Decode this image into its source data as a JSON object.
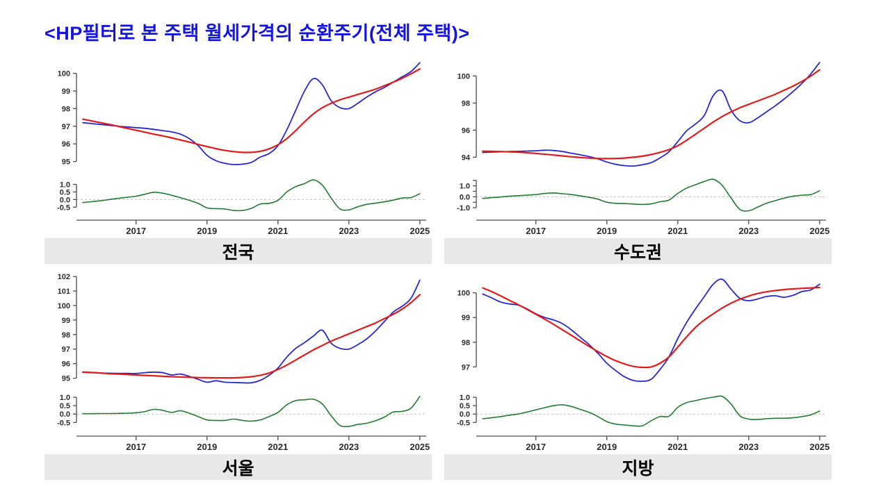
{
  "title": "<HP필터로 본 주택 월세가격의 순환주기(전체 주택)>",
  "colors": {
    "actual": "#2727cf",
    "trend": "#e11a1a",
    "cycle": "#227a30",
    "zero_line": "#bdbdbd",
    "axis": "#4a4a4a",
    "tick_text": "#2b2b2b",
    "title": "#1414e0",
    "label_bg": "#e8e8e8"
  },
  "x_axis": {
    "start": 2015.5,
    "step": 0.25,
    "range": [
      2015.32,
      2025.18
    ],
    "ticks": [
      2017,
      2019,
      2021,
      2023,
      2025
    ],
    "tick_labels": [
      "2017",
      "2019",
      "2021",
      "2023",
      "2025"
    ]
  },
  "chart_data": [
    {
      "type": "line",
      "title": "전국",
      "main": {
        "ylim": [
          94.55,
          100.85
        ],
        "yticks": [
          95,
          96,
          97,
          98,
          99,
          100
        ],
        "ytick_labels": [
          "95",
          "96",
          "97",
          "98",
          "99",
          "100"
        ],
        "series": [
          {
            "name": "actual",
            "values": [
              97.2,
              97.15,
              97.1,
              97.05,
              97.0,
              96.96,
              96.92,
              96.88,
              96.82,
              96.75,
              96.68,
              96.55,
              96.3,
              95.9,
              95.35,
              95.05,
              94.9,
              94.83,
              94.85,
              94.95,
              95.25,
              95.45,
              95.9,
              96.8,
              97.9,
              99.0,
              99.7,
              99.35,
              98.45,
              98.05,
              98.0,
              98.3,
              98.65,
              98.95,
              99.2,
              99.5,
              99.8,
              100.1,
              100.6
            ]
          },
          {
            "name": "hp_trend",
            "values": [
              97.4,
              97.3,
              97.2,
              97.1,
              96.99,
              96.88,
              96.77,
              96.66,
              96.55,
              96.45,
              96.34,
              96.22,
              96.1,
              95.97,
              95.85,
              95.73,
              95.63,
              95.56,
              95.52,
              95.52,
              95.58,
              95.72,
              95.95,
              96.3,
              96.75,
              97.25,
              97.7,
              98.05,
              98.3,
              98.5,
              98.65,
              98.8,
              98.95,
              99.1,
              99.3,
              99.5,
              99.72,
              99.97,
              100.25
            ]
          }
        ]
      },
      "cycle": {
        "ylim": [
          -0.9,
          1.48
        ],
        "yticks": [
          1.0,
          0.5,
          0.0,
          -0.5
        ],
        "ytick_labels": [
          "1.0",
          "0.5",
          "0.0",
          "-0.5"
        ],
        "series": {
          "name": "cycle",
          "values": [
            -0.2,
            -0.14,
            -0.08,
            0.0,
            0.08,
            0.15,
            0.22,
            0.35,
            0.48,
            0.42,
            0.28,
            0.12,
            -0.05,
            -0.25,
            -0.55,
            -0.6,
            -0.62,
            -0.72,
            -0.72,
            -0.58,
            -0.3,
            -0.25,
            -0.05,
            0.5,
            0.85,
            1.05,
            1.3,
            0.95,
            0.1,
            -0.62,
            -0.68,
            -0.48,
            -0.32,
            -0.24,
            -0.15,
            -0.04,
            0.1,
            0.13,
            0.38
          ]
        }
      }
    },
    {
      "type": "line",
      "title": "수도권",
      "main": {
        "ylim": [
          93.1,
          101.3
        ],
        "yticks": [
          94,
          96,
          98,
          100
        ],
        "ytick_labels": [
          "94",
          "96",
          "98",
          "100"
        ],
        "series": [
          {
            "name": "actual",
            "values": [
              94.35,
              94.38,
              94.4,
              94.42,
              94.44,
              94.46,
              94.48,
              94.52,
              94.5,
              94.42,
              94.3,
              94.18,
              94.05,
              93.88,
              93.65,
              93.48,
              93.38,
              93.35,
              93.45,
              93.6,
              93.95,
              94.4,
              95.15,
              95.95,
              96.45,
              97.1,
              98.55,
              98.9,
              97.5,
              96.7,
              96.55,
              96.9,
              97.35,
              97.8,
              98.3,
              98.85,
              99.45,
              100.15,
              101.0
            ]
          },
          {
            "name": "hp_trend",
            "values": [
              94.45,
              94.44,
              94.42,
              94.4,
              94.37,
              94.33,
              94.28,
              94.22,
              94.16,
              94.1,
              94.04,
              93.98,
              93.94,
              93.91,
              93.9,
              93.91,
              93.94,
              94.0,
              94.08,
              94.2,
              94.36,
              94.56,
              94.85,
              95.25,
              95.7,
              96.15,
              96.6,
              97.0,
              97.35,
              97.65,
              97.9,
              98.15,
              98.4,
              98.65,
              98.95,
              99.25,
              99.6,
              100.0,
              100.45
            ]
          }
        ]
      },
      "cycle": {
        "ylim": [
          -1.5,
          1.8
        ],
        "yticks": [
          1.5,
          1.0,
          0.5,
          0.0,
          -0.5,
          -1.0
        ],
        "ytick_labels": [
          "",
          "1.0",
          "",
          "0.0",
          "",
          "-1.0"
        ],
        "series": {
          "name": "cycle",
          "values": [
            -0.15,
            -0.08,
            -0.02,
            0.05,
            0.1,
            0.15,
            0.2,
            0.3,
            0.35,
            0.28,
            0.2,
            0.08,
            -0.05,
            -0.22,
            -0.5,
            -0.6,
            -0.62,
            -0.66,
            -0.7,
            -0.65,
            -0.45,
            -0.3,
            0.3,
            0.8,
            1.1,
            1.4,
            1.6,
            1.05,
            -0.1,
            -1.15,
            -1.28,
            -0.95,
            -0.6,
            -0.35,
            -0.12,
            0.05,
            0.15,
            0.2,
            0.55
          ]
        }
      }
    },
    {
      "type": "line",
      "title": "서울",
      "main": {
        "ylim": [
          94.5,
          102.15
        ],
        "yticks": [
          95,
          96,
          97,
          98,
          99,
          100,
          101,
          102
        ],
        "ytick_labels": [
          "95",
          "96",
          "97",
          "98",
          "99",
          "100",
          "101",
          "102"
        ],
        "series": [
          {
            "name": "actual",
            "values": [
              95.4,
              95.38,
              95.36,
              95.34,
              95.33,
              95.33,
              95.32,
              95.38,
              95.42,
              95.38,
              95.22,
              95.28,
              95.12,
              94.92,
              94.72,
              94.82,
              94.72,
              94.7,
              94.68,
              94.68,
              94.85,
              95.2,
              95.7,
              96.45,
              97.05,
              97.45,
              97.9,
              98.3,
              97.4,
              97.05,
              97.0,
              97.3,
              97.7,
              98.25,
              98.9,
              99.55,
              99.95,
              100.5,
              101.75
            ]
          },
          {
            "name": "hp_trend",
            "values": [
              95.42,
              95.39,
              95.35,
              95.31,
              95.28,
              95.25,
              95.22,
              95.19,
              95.16,
              95.13,
              95.1,
              95.08,
              95.06,
              95.04,
              95.03,
              95.02,
              95.02,
              95.02,
              95.05,
              95.1,
              95.2,
              95.35,
              95.6,
              95.9,
              96.25,
              96.6,
              96.95,
              97.25,
              97.55,
              97.8,
              98.05,
              98.3,
              98.55,
              98.8,
              99.1,
              99.4,
              99.75,
              100.2,
              100.75
            ]
          }
        ]
      },
      "cycle": {
        "ylim": [
          -0.9,
          1.25
        ],
        "yticks": [
          1.0,
          0.5,
          0.0,
          -0.5
        ],
        "ytick_labels": [
          "1.0",
          "0.5",
          "0.0",
          "-0.5"
        ],
        "series": {
          "name": "cycle",
          "values": [
            0.02,
            0.02,
            0.03,
            0.03,
            0.04,
            0.05,
            0.08,
            0.15,
            0.28,
            0.22,
            0.1,
            0.2,
            0.05,
            -0.15,
            -0.35,
            -0.38,
            -0.38,
            -0.3,
            -0.38,
            -0.42,
            -0.35,
            -0.15,
            0.1,
            0.55,
            0.8,
            0.85,
            0.88,
            0.6,
            -0.1,
            -0.68,
            -0.73,
            -0.62,
            -0.55,
            -0.4,
            -0.18,
            0.12,
            0.16,
            0.35,
            1.05
          ]
        }
      }
    },
    {
      "type": "line",
      "title": "지방",
      "main": {
        "ylim": [
          96.25,
          100.75
        ],
        "yticks": [
          97,
          98,
          99,
          100
        ],
        "ytick_labels": [
          "97",
          "98",
          "99",
          "100"
        ],
        "series": [
          {
            "name": "actual",
            "values": [
              99.95,
              99.8,
              99.63,
              99.55,
              99.5,
              99.35,
              99.15,
              99.0,
              98.9,
              98.75,
              98.5,
              98.2,
              97.9,
              97.55,
              97.15,
              96.85,
              96.6,
              96.45,
              96.42,
              96.5,
              96.9,
              97.4,
              98.15,
              98.8,
              99.35,
              99.85,
              100.35,
              100.55,
              100.15,
              99.78,
              99.68,
              99.75,
              99.85,
              99.88,
              99.82,
              99.9,
              100.05,
              100.12,
              100.35
            ]
          },
          {
            "name": "hp_trend",
            "values": [
              100.2,
              100.05,
              99.88,
              99.7,
              99.52,
              99.33,
              99.13,
              98.93,
              98.72,
              98.5,
              98.28,
              98.05,
              97.83,
              97.62,
              97.42,
              97.25,
              97.12,
              97.02,
              96.98,
              97.0,
              97.15,
              97.4,
              97.8,
              98.22,
              98.6,
              98.9,
              99.15,
              99.38,
              99.58,
              99.74,
              99.87,
              99.97,
              100.04,
              100.09,
              100.13,
              100.16,
              100.18,
              100.2,
              100.22
            ]
          }
        ]
      },
      "cycle": {
        "ylim": [
          -0.9,
          1.25
        ],
        "yticks": [
          1.0,
          0.5,
          0.0,
          -0.5
        ],
        "ytick_labels": [
          "1.0",
          "0.5",
          "0.0",
          "-0.5"
        ],
        "series": {
          "name": "cycle",
          "values": [
            -0.28,
            -0.22,
            -0.15,
            -0.07,
            0.0,
            0.12,
            0.25,
            0.38,
            0.5,
            0.55,
            0.45,
            0.28,
            0.1,
            -0.15,
            -0.45,
            -0.6,
            -0.65,
            -0.7,
            -0.7,
            -0.4,
            -0.15,
            -0.13,
            0.4,
            0.68,
            0.8,
            0.92,
            1.0,
            1.05,
            0.6,
            -0.1,
            -0.3,
            -0.32,
            -0.28,
            -0.25,
            -0.25,
            -0.22,
            -0.15,
            -0.05,
            0.18
          ]
        }
      }
    }
  ]
}
